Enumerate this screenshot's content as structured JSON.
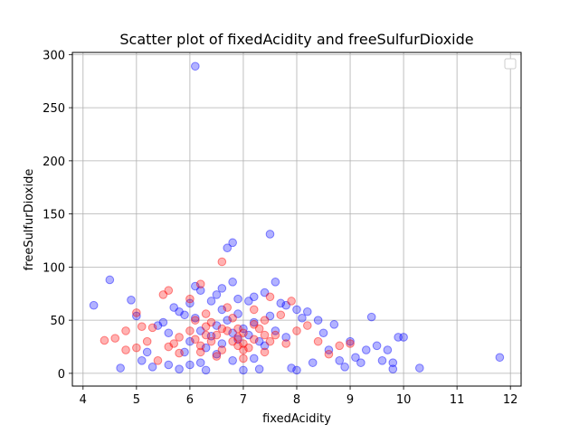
{
  "chart_data": {
    "type": "scatter",
    "title": "Scatter plot of fixedAcidity and freeSulfurDioxide",
    "xlabel": "fixedAcidity",
    "ylabel": "freeSulfurDioxide",
    "xlim": [
      3.8,
      12.2
    ],
    "ylim": [
      -12,
      302
    ],
    "xticks": [
      "4",
      "5",
      "6",
      "7",
      "8",
      "9",
      "10",
      "11",
      "12"
    ],
    "yticks": [
      "0",
      "50",
      "100",
      "150",
      "200",
      "250",
      "300"
    ],
    "grid": true,
    "legend": {
      "placement": "top-right",
      "entries": []
    },
    "series": [
      {
        "color": "#0000ff",
        "opacity": 0.3,
        "points": [
          [
            4.2,
            64
          ],
          [
            4.5,
            88
          ],
          [
            4.7,
            5
          ],
          [
            4.9,
            69
          ],
          [
            5.0,
            54
          ],
          [
            5.1,
            12
          ],
          [
            5.2,
            20
          ],
          [
            5.3,
            6
          ],
          [
            5.4,
            45
          ],
          [
            5.5,
            48
          ],
          [
            5.6,
            38
          ],
          [
            5.6,
            8
          ],
          [
            5.7,
            62
          ],
          [
            5.8,
            4
          ],
          [
            5.8,
            58
          ],
          [
            5.9,
            55
          ],
          [
            6.0,
            66
          ],
          [
            6.0,
            8
          ],
          [
            6.1,
            289
          ],
          [
            6.1,
            82
          ],
          [
            6.2,
            78
          ],
          [
            6.2,
            10
          ],
          [
            6.3,
            3
          ],
          [
            6.4,
            68
          ],
          [
            6.5,
            74
          ],
          [
            6.6,
            80
          ],
          [
            6.7,
            118
          ],
          [
            6.8,
            123
          ],
          [
            6.8,
            86
          ],
          [
            6.9,
            70
          ],
          [
            7.0,
            3
          ],
          [
            7.1,
            68
          ],
          [
            7.2,
            72
          ],
          [
            7.3,
            4
          ],
          [
            7.4,
            76
          ],
          [
            7.5,
            131
          ],
          [
            7.6,
            86
          ],
          [
            7.7,
            66
          ],
          [
            7.8,
            64
          ],
          [
            7.9,
            5
          ],
          [
            8.0,
            60
          ],
          [
            8.0,
            3
          ],
          [
            8.1,
            52
          ],
          [
            8.2,
            58
          ],
          [
            8.3,
            10
          ],
          [
            8.4,
            50
          ],
          [
            8.5,
            38
          ],
          [
            8.6,
            22
          ],
          [
            8.7,
            46
          ],
          [
            8.8,
            12
          ],
          [
            8.9,
            6
          ],
          [
            9.0,
            30
          ],
          [
            9.1,
            15
          ],
          [
            9.2,
            10
          ],
          [
            9.3,
            22
          ],
          [
            9.4,
            53
          ],
          [
            9.5,
            26
          ],
          [
            9.6,
            12
          ],
          [
            9.7,
            22
          ],
          [
            9.8,
            10
          ],
          [
            9.8,
            4
          ],
          [
            9.9,
            34
          ],
          [
            10.0,
            34
          ],
          [
            10.3,
            5
          ],
          [
            11.8,
            15
          ],
          [
            6.2,
            40
          ],
          [
            6.4,
            35
          ],
          [
            6.5,
            45
          ],
          [
            6.6,
            28
          ],
          [
            6.7,
            50
          ],
          [
            6.8,
            38
          ],
          [
            6.9,
            32
          ],
          [
            7.0,
            42
          ],
          [
            7.1,
            36
          ],
          [
            7.2,
            48
          ],
          [
            7.3,
            30
          ],
          [
            6.1,
            52
          ],
          [
            6.3,
            24
          ],
          [
            6.5,
            18
          ],
          [
            6.9,
            56
          ],
          [
            7.4,
            26
          ],
          [
            7.6,
            40
          ],
          [
            7.8,
            34
          ],
          [
            6.0,
            30
          ],
          [
            5.9,
            20
          ],
          [
            6.6,
            60
          ],
          [
            7.2,
            14
          ],
          [
            6.8,
            12
          ],
          [
            7.5,
            54
          ]
        ]
      },
      {
        "color": "#ff0000",
        "opacity": 0.3,
        "points": [
          [
            4.4,
            31
          ],
          [
            4.6,
            33
          ],
          [
            4.8,
            40
          ],
          [
            4.8,
            22
          ],
          [
            5.0,
            57
          ],
          [
            5.0,
            24
          ],
          [
            5.1,
            44
          ],
          [
            5.2,
            30
          ],
          [
            5.3,
            43
          ],
          [
            5.4,
            12
          ],
          [
            5.5,
            74
          ],
          [
            5.6,
            78
          ],
          [
            5.6,
            25
          ],
          [
            5.8,
            19
          ],
          [
            6.0,
            70
          ],
          [
            6.1,
            50
          ],
          [
            6.2,
            84
          ],
          [
            6.3,
            36
          ],
          [
            6.6,
            105
          ],
          [
            6.7,
            62
          ],
          [
            6.9,
            42
          ],
          [
            7.0,
            28
          ],
          [
            7.2,
            60
          ],
          [
            7.4,
            36
          ],
          [
            7.5,
            72
          ],
          [
            7.7,
            55
          ],
          [
            7.9,
            68
          ],
          [
            8.0,
            40
          ],
          [
            8.2,
            45
          ],
          [
            8.4,
            30
          ],
          [
            8.6,
            18
          ],
          [
            8.8,
            26
          ],
          [
            9.0,
            28
          ],
          [
            6.1,
            32
          ],
          [
            6.2,
            26
          ],
          [
            6.3,
            44
          ],
          [
            6.4,
            30
          ],
          [
            6.5,
            36
          ],
          [
            6.6,
            22
          ],
          [
            6.7,
            40
          ],
          [
            6.8,
            30
          ],
          [
            6.9,
            34
          ],
          [
            7.0,
            38
          ],
          [
            7.1,
            24
          ],
          [
            7.2,
            32
          ],
          [
            7.3,
            42
          ],
          [
            7.4,
            20
          ],
          [
            7.5,
            30
          ],
          [
            7.6,
            36
          ],
          [
            6.0,
            40
          ],
          [
            6.4,
            48
          ],
          [
            6.8,
            52
          ],
          [
            7.2,
            46
          ],
          [
            6.5,
            16
          ],
          [
            7.0,
            14
          ],
          [
            6.3,
            56
          ],
          [
            7.4,
            50
          ],
          [
            5.8,
            34
          ],
          [
            5.7,
            28
          ],
          [
            7.8,
            28
          ],
          [
            6.2,
            20
          ],
          [
            6.6,
            42
          ],
          [
            7.0,
            22
          ],
          [
            6.9,
            26
          ]
        ]
      }
    ]
  }
}
